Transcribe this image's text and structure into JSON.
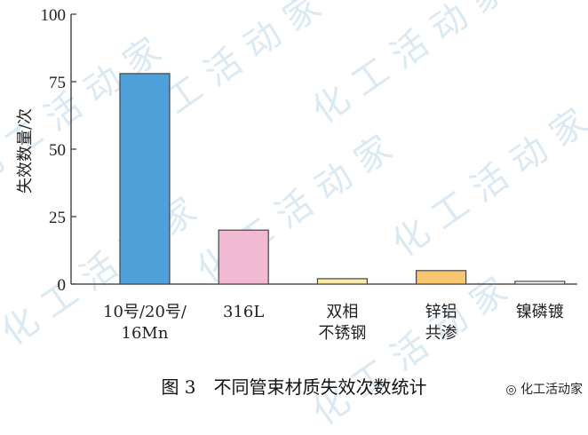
{
  "chart_data": {
    "type": "bar",
    "categories": [
      [
        "10号/20号/",
        "16Mn"
      ],
      [
        "316L"
      ],
      [
        "双相",
        "不锈钢"
      ],
      [
        "锌铝",
        "共渗"
      ],
      [
        "镍磷镀"
      ]
    ],
    "values": [
      78,
      20,
      2,
      5,
      1
    ],
    "colors": [
      "#4f9fd8",
      "#f2b9d3",
      "#f8eaa5",
      "#f8c66e",
      "#ffffff"
    ],
    "ylabel": "失效数量/次",
    "ylim": [
      0,
      100
    ],
    "yticks": [
      0,
      25,
      50,
      75,
      100
    ],
    "grid": false
  },
  "caption": "图 3　不同管束材质失效次数统计",
  "watermark": "化工活动家",
  "logo": "化工活动家"
}
